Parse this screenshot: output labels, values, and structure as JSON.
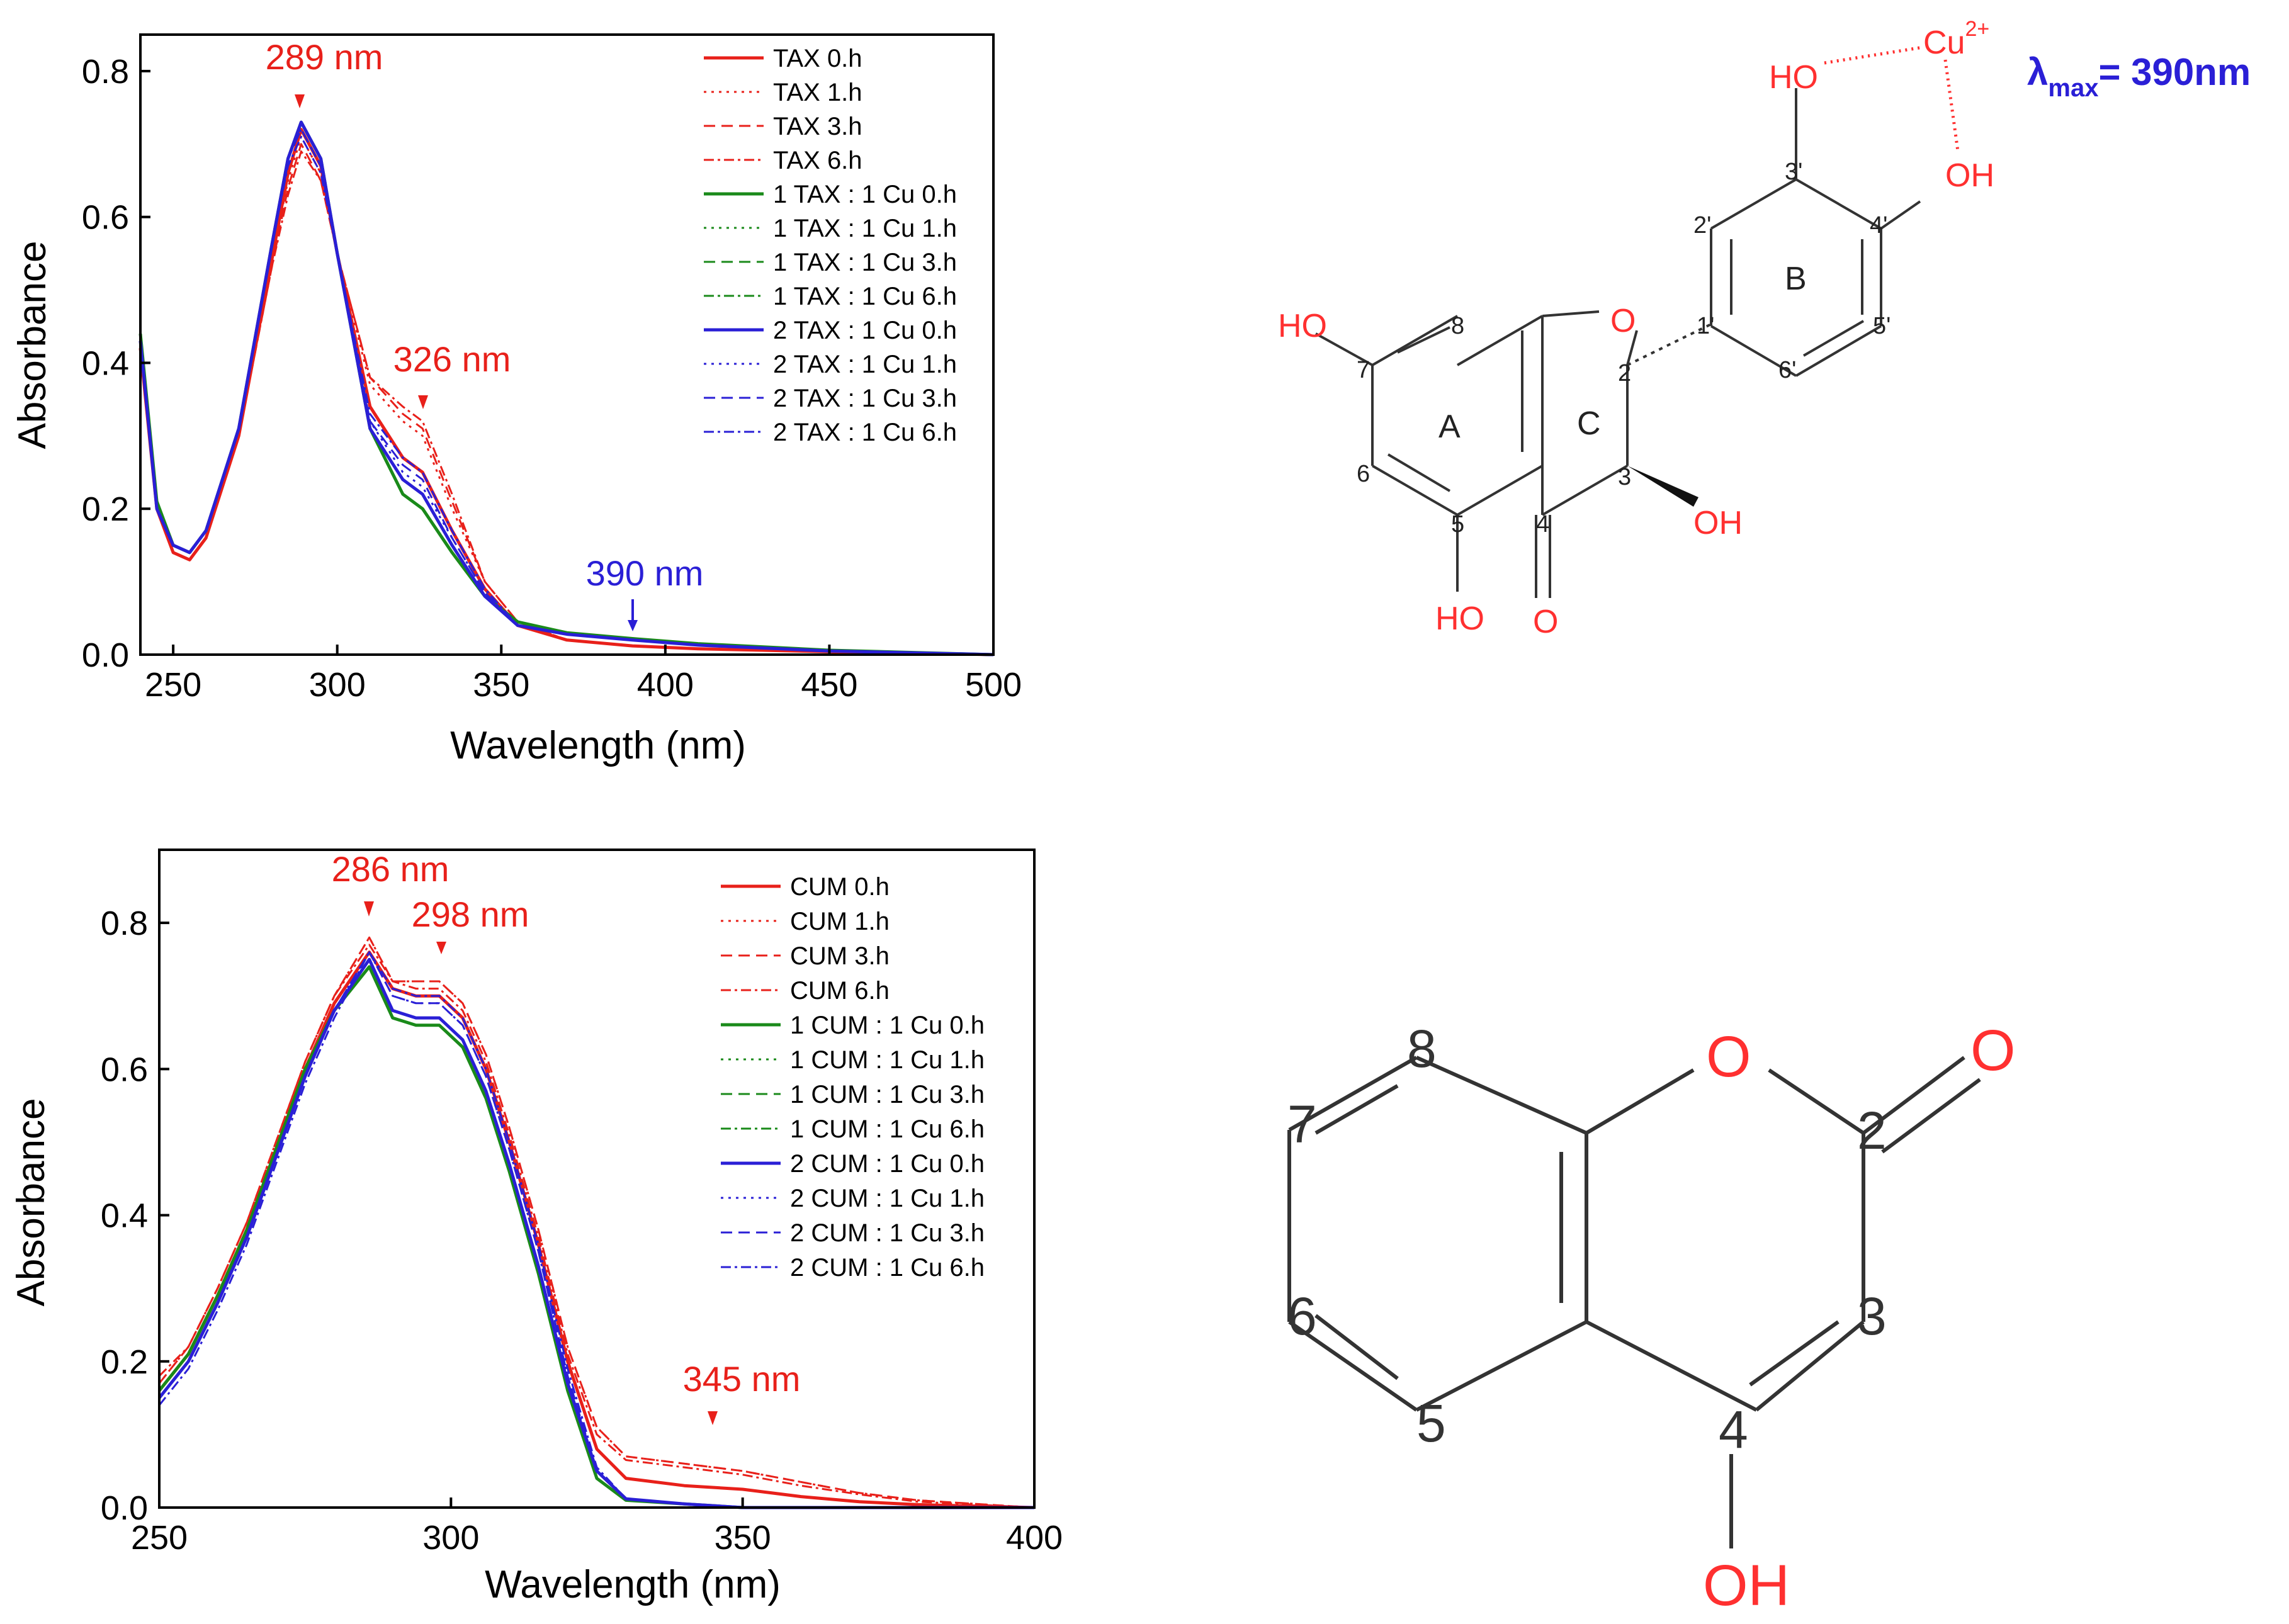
{
  "chart_data": [
    {
      "type": "line",
      "xlabel": "Wavelength (nm)",
      "ylabel": "Absorbance",
      "xlim": [
        240,
        500
      ],
      "ylim": [
        0,
        0.85
      ],
      "xticks": [
        "250",
        "300",
        "350",
        "400",
        "450",
        "500"
      ],
      "yticks": [
        "0.0",
        "0.2",
        "0.4",
        "0.6",
        "0.8"
      ],
      "legend_position": "top-right",
      "annotations": [
        {
          "text": "289 nm",
          "x": 289,
          "y": 0.73,
          "color": "#e8201a"
        },
        {
          "text": "326 nm",
          "x": 326,
          "y": 0.33,
          "color": "#e8201a"
        },
        {
          "text": "390 nm",
          "x": 390,
          "y": 0.03,
          "color": "#2a1fd6"
        }
      ],
      "x": [
        240,
        245,
        250,
        255,
        260,
        270,
        280,
        285,
        289,
        295,
        300,
        310,
        320,
        326,
        335,
        345,
        355,
        370,
        390,
        410,
        450,
        500
      ],
      "series": [
        {
          "name": "TAX 0.h",
          "color": "#e8201a",
          "style": "solid",
          "width": 5,
          "values": [
            0.42,
            0.2,
            0.14,
            0.13,
            0.16,
            0.3,
            0.54,
            0.66,
            0.72,
            0.67,
            0.55,
            0.34,
            0.27,
            0.25,
            0.17,
            0.09,
            0.04,
            0.02,
            0.012,
            0.008,
            0.004,
            0.0
          ]
        },
        {
          "name": "TAX 1.h",
          "color": "#e8201a",
          "style": "dot",
          "width": 3,
          "values": [
            0.42,
            0.2,
            0.14,
            0.13,
            0.16,
            0.3,
            0.54,
            0.65,
            0.71,
            0.66,
            0.55,
            0.37,
            0.32,
            0.3,
            0.2,
            0.1,
            0.045,
            0.02,
            0.012,
            0.008,
            0.004,
            0.0
          ]
        },
        {
          "name": "TAX 3.h",
          "color": "#e8201a",
          "style": "dash",
          "width": 3,
          "values": [
            0.42,
            0.2,
            0.14,
            0.13,
            0.16,
            0.3,
            0.53,
            0.64,
            0.7,
            0.65,
            0.55,
            0.38,
            0.33,
            0.31,
            0.21,
            0.1,
            0.045,
            0.02,
            0.012,
            0.008,
            0.004,
            0.0
          ]
        },
        {
          "name": "TAX 6.h",
          "color": "#e8201a",
          "style": "dashdot",
          "width": 3,
          "values": [
            0.42,
            0.2,
            0.14,
            0.13,
            0.16,
            0.3,
            0.53,
            0.63,
            0.69,
            0.65,
            0.55,
            0.38,
            0.34,
            0.32,
            0.22,
            0.1,
            0.045,
            0.02,
            0.012,
            0.008,
            0.004,
            0.0
          ]
        },
        {
          "name": "1 TAX : 1 Cu 0.h",
          "color": "#1a8a1a",
          "style": "solid",
          "width": 5,
          "values": [
            0.44,
            0.21,
            0.15,
            0.14,
            0.17,
            0.31,
            0.56,
            0.68,
            0.73,
            0.68,
            0.55,
            0.31,
            0.22,
            0.2,
            0.14,
            0.08,
            0.045,
            0.03,
            0.022,
            0.015,
            0.006,
            0.0
          ]
        },
        {
          "name": "1 TAX : 1 Cu 1.h",
          "color": "#1a8a1a",
          "style": "dot",
          "width": 3,
          "values": [
            0.44,
            0.21,
            0.15,
            0.14,
            0.17,
            0.31,
            0.56,
            0.68,
            0.73,
            0.68,
            0.55,
            0.31,
            0.22,
            0.2,
            0.14,
            0.08,
            0.045,
            0.03,
            0.022,
            0.015,
            0.006,
            0.0
          ]
        },
        {
          "name": "1 TAX : 1 Cu 3.h",
          "color": "#1a8a1a",
          "style": "dash",
          "width": 3,
          "values": [
            0.44,
            0.21,
            0.15,
            0.14,
            0.17,
            0.31,
            0.56,
            0.68,
            0.73,
            0.68,
            0.55,
            0.31,
            0.22,
            0.2,
            0.14,
            0.08,
            0.045,
            0.03,
            0.022,
            0.015,
            0.006,
            0.0
          ]
        },
        {
          "name": "1 TAX : 1 Cu 6.h",
          "color": "#1a8a1a",
          "style": "dashdot",
          "width": 3,
          "values": [
            0.44,
            0.21,
            0.15,
            0.14,
            0.17,
            0.31,
            0.56,
            0.68,
            0.73,
            0.68,
            0.55,
            0.31,
            0.22,
            0.2,
            0.14,
            0.08,
            0.045,
            0.03,
            0.022,
            0.015,
            0.006,
            0.0
          ]
        },
        {
          "name": "2 TAX : 1 Cu 0.h",
          "color": "#2a1fd6",
          "style": "solid",
          "width": 5,
          "values": [
            0.43,
            0.2,
            0.15,
            0.14,
            0.17,
            0.31,
            0.56,
            0.68,
            0.73,
            0.68,
            0.55,
            0.31,
            0.24,
            0.22,
            0.15,
            0.08,
            0.04,
            0.028,
            0.02,
            0.013,
            0.005,
            0.0
          ]
        },
        {
          "name": "2 TAX : 1 Cu 1.h",
          "color": "#2a1fd6",
          "style": "dot",
          "width": 3,
          "values": [
            0.43,
            0.2,
            0.15,
            0.14,
            0.17,
            0.31,
            0.56,
            0.68,
            0.72,
            0.67,
            0.55,
            0.32,
            0.25,
            0.23,
            0.16,
            0.085,
            0.04,
            0.028,
            0.02,
            0.013,
            0.005,
            0.0
          ]
        },
        {
          "name": "2 TAX : 1 Cu 3.h",
          "color": "#2a1fd6",
          "style": "dash",
          "width": 3,
          "values": [
            0.43,
            0.2,
            0.15,
            0.14,
            0.17,
            0.31,
            0.56,
            0.68,
            0.72,
            0.67,
            0.55,
            0.32,
            0.26,
            0.24,
            0.16,
            0.085,
            0.04,
            0.028,
            0.02,
            0.013,
            0.005,
            0.0
          ]
        },
        {
          "name": "2 TAX : 1 Cu 6.h",
          "color": "#2a1fd6",
          "style": "dashdot",
          "width": 3,
          "values": [
            0.43,
            0.2,
            0.15,
            0.14,
            0.17,
            0.31,
            0.56,
            0.67,
            0.71,
            0.66,
            0.55,
            0.33,
            0.27,
            0.25,
            0.17,
            0.09,
            0.04,
            0.028,
            0.02,
            0.013,
            0.005,
            0.0
          ]
        }
      ]
    },
    {
      "type": "line",
      "xlabel": "Wavelength (nm)",
      "ylabel": "Absorbance",
      "xlim": [
        250,
        400
      ],
      "ylim": [
        0,
        0.9
      ],
      "xticks": [
        "250",
        "300",
        "350",
        "400"
      ],
      "yticks": [
        "0.0",
        "0.2",
        "0.4",
        "0.6",
        "0.8"
      ],
      "legend_position": "top-right",
      "annotations": [
        {
          "text": "286 nm",
          "x": 286,
          "y": 0.78,
          "color": "#e8201a"
        },
        {
          "text": "298 nm",
          "x": 298,
          "y": 0.72,
          "color": "#e8201a"
        },
        {
          "text": "345 nm",
          "x": 345,
          "y": 0.06,
          "color": "#e8201a"
        }
      ],
      "x": [
        250,
        255,
        260,
        265,
        270,
        275,
        280,
        286,
        290,
        294,
        298,
        302,
        306,
        310,
        315,
        320,
        325,
        330,
        340,
        350,
        360,
        370,
        380,
        400
      ],
      "series": [
        {
          "name": "CUM 0.h",
          "color": "#e8201a",
          "style": "solid",
          "width": 5,
          "values": [
            0.16,
            0.21,
            0.29,
            0.38,
            0.49,
            0.6,
            0.69,
            0.76,
            0.71,
            0.7,
            0.7,
            0.67,
            0.6,
            0.5,
            0.36,
            0.2,
            0.08,
            0.04,
            0.03,
            0.025,
            0.015,
            0.008,
            0.004,
            0.0
          ]
        },
        {
          "name": "CUM 1.h",
          "color": "#e8201a",
          "style": "dot",
          "width": 3,
          "values": [
            0.17,
            0.22,
            0.3,
            0.39,
            0.5,
            0.61,
            0.7,
            0.78,
            0.72,
            0.72,
            0.72,
            0.69,
            0.62,
            0.52,
            0.38,
            0.22,
            0.11,
            0.07,
            0.06,
            0.05,
            0.035,
            0.02,
            0.01,
            0.0
          ]
        },
        {
          "name": "CUM 3.h",
          "color": "#e8201a",
          "style": "dash",
          "width": 3,
          "values": [
            0.17,
            0.22,
            0.3,
            0.39,
            0.5,
            0.61,
            0.7,
            0.78,
            0.72,
            0.72,
            0.72,
            0.69,
            0.62,
            0.52,
            0.38,
            0.22,
            0.11,
            0.07,
            0.06,
            0.05,
            0.035,
            0.02,
            0.01,
            0.0
          ]
        },
        {
          "name": "CUM 6.h",
          "color": "#e8201a",
          "style": "dashdot",
          "width": 3,
          "values": [
            0.18,
            0.22,
            0.3,
            0.39,
            0.5,
            0.61,
            0.7,
            0.77,
            0.72,
            0.71,
            0.71,
            0.68,
            0.61,
            0.51,
            0.37,
            0.21,
            0.1,
            0.065,
            0.055,
            0.045,
            0.03,
            0.018,
            0.008,
            0.0
          ]
        },
        {
          "name": "1 CUM : 1 Cu 0.h",
          "color": "#1a8a1a",
          "style": "solid",
          "width": 5,
          "values": [
            0.16,
            0.21,
            0.29,
            0.38,
            0.49,
            0.6,
            0.68,
            0.74,
            0.67,
            0.66,
            0.66,
            0.63,
            0.56,
            0.46,
            0.32,
            0.16,
            0.04,
            0.01,
            0.005,
            0.0,
            0.0,
            0.0,
            0.0,
            0.0
          ]
        },
        {
          "name": "1 CUM : 1 Cu 1.h",
          "color": "#1a8a1a",
          "style": "dot",
          "width": 3,
          "values": [
            0.16,
            0.21,
            0.29,
            0.38,
            0.49,
            0.6,
            0.68,
            0.74,
            0.67,
            0.66,
            0.66,
            0.63,
            0.56,
            0.46,
            0.32,
            0.16,
            0.04,
            0.01,
            0.005,
            0.0,
            0.0,
            0.0,
            0.0,
            0.0
          ]
        },
        {
          "name": "1 CUM : 1 Cu 3.h",
          "color": "#1a8a1a",
          "style": "dash",
          "width": 3,
          "values": [
            0.16,
            0.21,
            0.29,
            0.38,
            0.49,
            0.6,
            0.68,
            0.74,
            0.67,
            0.66,
            0.66,
            0.63,
            0.56,
            0.46,
            0.32,
            0.16,
            0.04,
            0.01,
            0.005,
            0.0,
            0.0,
            0.0,
            0.0,
            0.0
          ]
        },
        {
          "name": "1 CUM : 1 Cu 6.h",
          "color": "#1a8a1a",
          "style": "dashdot",
          "width": 3,
          "values": [
            0.16,
            0.21,
            0.29,
            0.38,
            0.49,
            0.6,
            0.68,
            0.74,
            0.67,
            0.66,
            0.66,
            0.63,
            0.56,
            0.46,
            0.32,
            0.16,
            0.04,
            0.01,
            0.005,
            0.0,
            0.0,
            0.0,
            0.0,
            0.0
          ]
        },
        {
          "name": "2 CUM : 1 Cu 0.h",
          "color": "#2a1fd6",
          "style": "solid",
          "width": 5,
          "values": [
            0.15,
            0.2,
            0.28,
            0.37,
            0.48,
            0.59,
            0.68,
            0.75,
            0.68,
            0.67,
            0.67,
            0.64,
            0.57,
            0.47,
            0.33,
            0.17,
            0.05,
            0.012,
            0.005,
            0.0,
            0.0,
            0.0,
            0.0,
            0.0
          ]
        },
        {
          "name": "2 CUM : 1 Cu 1.h",
          "color": "#2a1fd6",
          "style": "dot",
          "width": 3,
          "values": [
            0.15,
            0.2,
            0.28,
            0.37,
            0.48,
            0.59,
            0.68,
            0.76,
            0.7,
            0.69,
            0.69,
            0.66,
            0.59,
            0.49,
            0.35,
            0.18,
            0.05,
            0.012,
            0.005,
            0.0,
            0.0,
            0.0,
            0.0,
            0.0
          ]
        },
        {
          "name": "2 CUM : 1 Cu 3.h",
          "color": "#2a1fd6",
          "style": "dash",
          "width": 3,
          "values": [
            0.15,
            0.2,
            0.28,
            0.37,
            0.48,
            0.59,
            0.68,
            0.76,
            0.7,
            0.69,
            0.69,
            0.66,
            0.59,
            0.49,
            0.35,
            0.18,
            0.05,
            0.012,
            0.005,
            0.0,
            0.0,
            0.0,
            0.0,
            0.0
          ]
        },
        {
          "name": "2 CUM : 1 Cu 6.h",
          "color": "#2a1fd6",
          "style": "dashdot",
          "width": 3,
          "values": [
            0.14,
            0.19,
            0.27,
            0.36,
            0.47,
            0.58,
            0.67,
            0.76,
            0.71,
            0.7,
            0.7,
            0.67,
            0.6,
            0.5,
            0.36,
            0.19,
            0.055,
            0.012,
            0.005,
            0.0,
            0.0,
            0.0,
            0.0,
            0.0
          ]
        }
      ]
    }
  ],
  "taxifolin_structure": {
    "lambda_prefix": "λ",
    "lambda_sub": "max",
    "lambda_value": "= 390nm",
    "lambda_color": "#2a1fd6",
    "cu_label": "Cu",
    "cu_charge": "2+",
    "atoms": {
      "ho_3p": "HO",
      "oh_4p": "OH",
      "ho_7": "HO",
      "o_ring": "O",
      "oh_3": "OH",
      "ho_5": "HO",
      "o_4": "O"
    },
    "numbers": {
      "n8": "8",
      "n7": "7",
      "n6": "6",
      "n5": "5",
      "n4": "4",
      "n3": "3",
      "n2": "2",
      "n1p": "1'",
      "n2p": "2'",
      "n3p": "3'",
      "n4p": "4'",
      "n5p": "5'",
      "n6p": "6'"
    },
    "rings": {
      "a": "A",
      "b": "B",
      "c": "C"
    }
  },
  "coumarin_structure": {
    "atoms": {
      "o_ring": "O",
      "o_carbonyl": "O",
      "oh_4": "OH"
    },
    "numbers": {
      "n2": "2",
      "n3": "3",
      "n4": "4",
      "n5": "5",
      "n6": "6",
      "n7": "7",
      "n8": "8"
    }
  }
}
